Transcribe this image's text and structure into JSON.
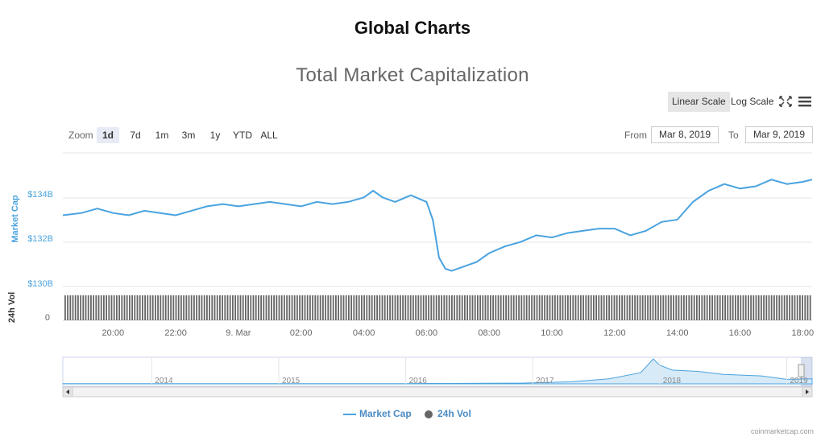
{
  "page_title": "Global Charts",
  "chart_title": "Total Market Capitalization",
  "toolbar": {
    "linear_scale": "Linear Scale",
    "log_scale": "Log Scale",
    "fullscreen_icon": "fullscreen-icon",
    "menu_icon": "menu-icon"
  },
  "zoom": {
    "label": "Zoom",
    "options": [
      "1d",
      "7d",
      "1m",
      "3m",
      "1y",
      "YTD",
      "ALL"
    ],
    "selected": "1d"
  },
  "range": {
    "from_label": "From",
    "from_value": "Mar 8, 2019",
    "to_label": "To",
    "to_value": "Mar 9, 2019"
  },
  "colors": {
    "market_cap": "#4aa3df",
    "volume": "#666666",
    "navigator_fill": "#d6eaf8"
  },
  "chart_data": {
    "type": "line",
    "y_axis": {
      "label": "Market Cap",
      "tick_labels": [
        "$134B",
        "$132B",
        "$130B"
      ],
      "tick_values": [
        134,
        132,
        130
      ],
      "range": [
        130,
        136
      ]
    },
    "volume_axis": {
      "label": "24h Vol",
      "tick_labels": [
        "0"
      ]
    },
    "x_axis": {
      "tick_labels": [
        "20:00",
        "22:00",
        "9. Mar",
        "02:00",
        "04:00",
        "06:00",
        "08:00",
        "10:00",
        "12:00",
        "14:00",
        "16:00",
        "18:00"
      ],
      "tick_hours": [
        20,
        22,
        24,
        26,
        28,
        30,
        32,
        34,
        36,
        38,
        40,
        42
      ],
      "range_hours": [
        18.4,
        42.3
      ]
    },
    "series": [
      {
        "name": "Market Cap",
        "x_hours": [
          18.4,
          19.0,
          19.5,
          20.0,
          20.5,
          21.0,
          21.5,
          22.0,
          22.5,
          23.0,
          23.5,
          24.0,
          24.5,
          25.0,
          25.5,
          26.0,
          26.5,
          27.0,
          27.5,
          28.0,
          28.3,
          28.6,
          29.0,
          29.5,
          30.0,
          30.2,
          30.4,
          30.6,
          30.8,
          31.2,
          31.6,
          32.0,
          32.5,
          33.0,
          33.5,
          34.0,
          34.5,
          35.0,
          35.5,
          36.0,
          36.5,
          37.0,
          37.5,
          38.0,
          38.5,
          39.0,
          39.5,
          40.0,
          40.5,
          41.0,
          41.5,
          42.0,
          42.3
        ],
        "values": [
          133.2,
          133.3,
          133.5,
          133.3,
          133.2,
          133.4,
          133.3,
          133.2,
          133.4,
          133.6,
          133.7,
          133.6,
          133.7,
          133.8,
          133.7,
          133.6,
          133.8,
          133.7,
          133.8,
          134.0,
          134.3,
          134.0,
          133.8,
          134.1,
          133.8,
          133.0,
          131.3,
          130.8,
          130.7,
          130.9,
          131.1,
          131.5,
          131.8,
          132.0,
          132.3,
          132.2,
          132.4,
          132.5,
          132.6,
          132.6,
          132.3,
          132.5,
          132.9,
          133.0,
          133.8,
          134.3,
          134.6,
          134.4,
          134.5,
          134.8,
          134.6,
          134.7,
          134.8
        ]
      },
      {
        "name": "24h Vol",
        "type": "column",
        "note_values": "constant daily volume across the 1d window",
        "values_relative": 1.0
      }
    ],
    "navigator": {
      "year_labels": [
        "2014",
        "2015",
        "2016",
        "2017",
        "2018",
        "2019"
      ],
      "year_values": [
        2014,
        2015,
        2016,
        2017,
        2018,
        2019
      ],
      "range_years": [
        2013.3,
        2019.2
      ],
      "trend_x": [
        2013.3,
        2014.0,
        2015.0,
        2016.0,
        2016.9,
        2017.3,
        2017.6,
        2017.85,
        2017.95,
        2018.0,
        2018.1,
        2018.3,
        2018.5,
        2018.8,
        2019.0,
        2019.2
      ],
      "trend_y": [
        0.01,
        0.01,
        0.005,
        0.01,
        0.03,
        0.08,
        0.2,
        0.45,
        1.0,
        0.75,
        0.55,
        0.5,
        0.38,
        0.32,
        0.18,
        0.2
      ]
    }
  },
  "legend": [
    {
      "label": "Market Cap"
    },
    {
      "label": "24h Vol"
    }
  ],
  "credits": "coinmarketcap.com"
}
